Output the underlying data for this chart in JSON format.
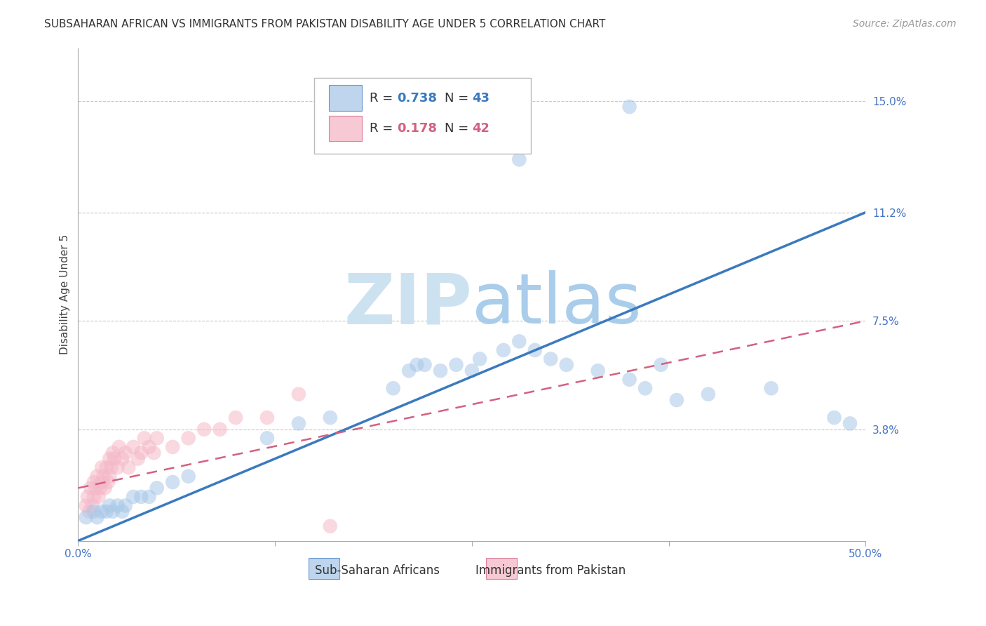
{
  "title": "SUBSAHARAN AFRICAN VS IMMIGRANTS FROM PAKISTAN DISABILITY AGE UNDER 5 CORRELATION CHART",
  "source": "Source: ZipAtlas.com",
  "ylabel": "Disability Age Under 5",
  "xlim": [
    0.0,
    0.5
  ],
  "ylim": [
    0.0,
    0.168
  ],
  "ytick_labels_right": [
    "15.0%",
    "11.2%",
    "7.5%",
    "3.8%"
  ],
  "ytick_values_right": [
    0.15,
    0.112,
    0.075,
    0.038
  ],
  "blue_color": "#a8c8e8",
  "pink_color": "#f5b8c8",
  "blue_line_color": "#3a7abf",
  "pink_line_color": "#d46080",
  "grid_color": "#c8c8c8",
  "axis_label_color": "#4472c4",
  "watermark_color_zip": "#c8dff0",
  "watermark_color_atlas": "#a0c8e8",
  "background_color": "#ffffff",
  "blue_scatter_x": [
    0.005,
    0.01,
    0.012,
    0.015,
    0.018,
    0.02,
    0.022,
    0.025,
    0.028,
    0.03,
    0.035,
    0.04,
    0.045,
    0.05,
    0.06,
    0.07,
    0.12,
    0.14,
    0.16,
    0.2,
    0.21,
    0.215,
    0.22,
    0.23,
    0.24,
    0.25,
    0.255,
    0.27,
    0.28,
    0.29,
    0.3,
    0.31,
    0.33,
    0.35,
    0.36,
    0.37,
    0.38,
    0.4,
    0.44,
    0.48,
    0.49,
    0.28,
    0.35
  ],
  "blue_scatter_y": [
    0.008,
    0.01,
    0.008,
    0.01,
    0.01,
    0.012,
    0.01,
    0.012,
    0.01,
    0.012,
    0.015,
    0.015,
    0.015,
    0.018,
    0.02,
    0.022,
    0.035,
    0.04,
    0.042,
    0.052,
    0.058,
    0.06,
    0.06,
    0.058,
    0.06,
    0.058,
    0.062,
    0.065,
    0.068,
    0.065,
    0.062,
    0.06,
    0.058,
    0.055,
    0.052,
    0.06,
    0.048,
    0.05,
    0.052,
    0.042,
    0.04,
    0.13,
    0.148
  ],
  "pink_scatter_x": [
    0.005,
    0.006,
    0.007,
    0.008,
    0.009,
    0.01,
    0.01,
    0.011,
    0.012,
    0.013,
    0.014,
    0.015,
    0.015,
    0.016,
    0.017,
    0.018,
    0.019,
    0.02,
    0.02,
    0.021,
    0.022,
    0.023,
    0.025,
    0.026,
    0.028,
    0.03,
    0.032,
    0.035,
    0.038,
    0.04,
    0.042,
    0.045,
    0.048,
    0.05,
    0.06,
    0.07,
    0.08,
    0.09,
    0.1,
    0.12,
    0.14,
    0.16
  ],
  "pink_scatter_y": [
    0.012,
    0.015,
    0.01,
    0.018,
    0.012,
    0.015,
    0.02,
    0.018,
    0.022,
    0.015,
    0.018,
    0.02,
    0.025,
    0.022,
    0.018,
    0.025,
    0.02,
    0.022,
    0.028,
    0.025,
    0.03,
    0.028,
    0.025,
    0.032,
    0.028,
    0.03,
    0.025,
    0.032,
    0.028,
    0.03,
    0.035,
    0.032,
    0.03,
    0.035,
    0.032,
    0.035,
    0.038,
    0.038,
    0.042,
    0.042,
    0.05,
    0.005
  ],
  "blue_line_x": [
    0.0,
    0.5
  ],
  "blue_line_y": [
    0.0,
    0.112
  ],
  "pink_line_x": [
    0.0,
    0.5
  ],
  "pink_line_y": [
    0.018,
    0.075
  ],
  "title_fontsize": 11,
  "axis_label_fontsize": 11,
  "tick_fontsize": 11,
  "legend_fontsize": 13,
  "source_fontsize": 10
}
